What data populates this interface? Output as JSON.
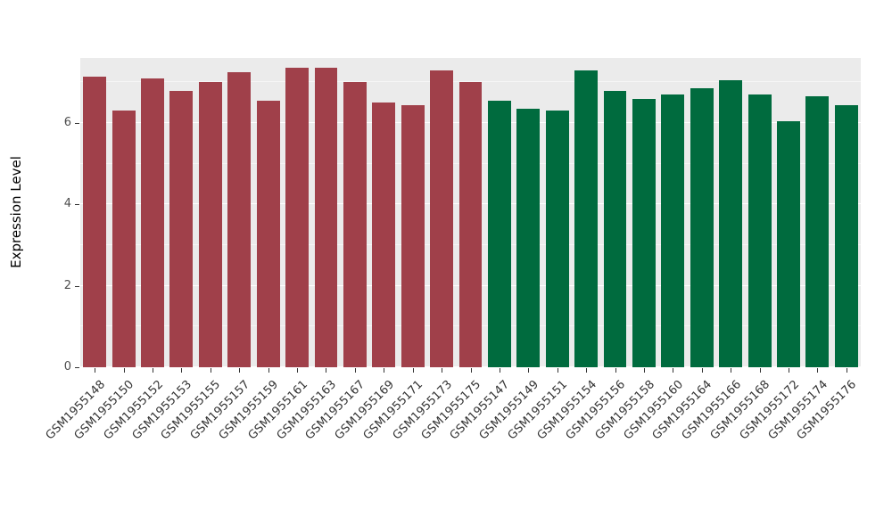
{
  "chart_data": {
    "type": "bar",
    "title": "",
    "xlabel": "",
    "ylabel": "Expression Level",
    "ylim": [
      0,
      7.6
    ],
    "yticks": [
      0,
      2,
      4,
      6
    ],
    "grid": "white major and minor horizontal gridlines on gray panel",
    "legend_position": "none",
    "panel_background": "#EBEBEB",
    "groups": [
      {
        "name": "left-group",
        "color": "#A0404A"
      },
      {
        "name": "right-group",
        "color": "#006B3E"
      }
    ],
    "bars": [
      {
        "label": "GSM1955148",
        "value": 7.15,
        "group": "left-group"
      },
      {
        "label": "GSM1955150",
        "value": 6.3,
        "group": "left-group"
      },
      {
        "label": "GSM1955152",
        "value": 7.1,
        "group": "left-group"
      },
      {
        "label": "GSM1955153",
        "value": 6.8,
        "group": "left-group"
      },
      {
        "label": "GSM1955155",
        "value": 7.0,
        "group": "left-group"
      },
      {
        "label": "GSM1955157",
        "value": 7.25,
        "group": "left-group"
      },
      {
        "label": "GSM1955159",
        "value": 6.55,
        "group": "left-group"
      },
      {
        "label": "GSM1955161",
        "value": 7.35,
        "group": "left-group"
      },
      {
        "label": "GSM1955163",
        "value": 7.35,
        "group": "left-group"
      },
      {
        "label": "GSM1955167",
        "value": 7.0,
        "group": "left-group"
      },
      {
        "label": "GSM1955169",
        "value": 6.5,
        "group": "left-group"
      },
      {
        "label": "GSM1955171",
        "value": 6.45,
        "group": "left-group"
      },
      {
        "label": "GSM1955173",
        "value": 7.3,
        "group": "left-group"
      },
      {
        "label": "GSM1955175",
        "value": 7.0,
        "group": "left-group"
      },
      {
        "label": "GSM1955147",
        "value": 6.55,
        "group": "right-group"
      },
      {
        "label": "GSM1955149",
        "value": 6.35,
        "group": "right-group"
      },
      {
        "label": "GSM1955151",
        "value": 6.3,
        "group": "right-group"
      },
      {
        "label": "GSM1955154",
        "value": 7.3,
        "group": "right-group"
      },
      {
        "label": "GSM1955156",
        "value": 6.8,
        "group": "right-group"
      },
      {
        "label": "GSM1955158",
        "value": 6.6,
        "group": "right-group"
      },
      {
        "label": "GSM1955160",
        "value": 6.7,
        "group": "right-group"
      },
      {
        "label": "GSM1955164",
        "value": 6.85,
        "group": "right-group"
      },
      {
        "label": "GSM1955166",
        "value": 7.05,
        "group": "right-group"
      },
      {
        "label": "GSM1955168",
        "value": 6.7,
        "group": "right-group"
      },
      {
        "label": "GSM1955172",
        "value": 6.05,
        "group": "right-group"
      },
      {
        "label": "GSM1955174",
        "value": 6.65,
        "group": "right-group"
      },
      {
        "label": "GSM1955176",
        "value": 6.45,
        "group": "right-group"
      }
    ]
  }
}
